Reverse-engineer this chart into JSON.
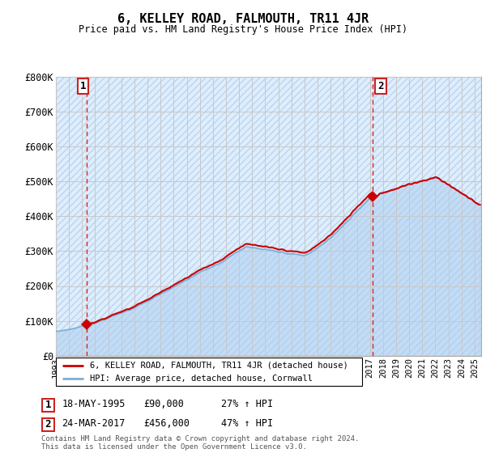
{
  "title": "6, KELLEY ROAD, FALMOUTH, TR11 4JR",
  "subtitle": "Price paid vs. HM Land Registry's House Price Index (HPI)",
  "ylim": [
    0,
    800000
  ],
  "xlim_start": 1993.0,
  "xlim_end": 2025.5,
  "hpi_color": "#7eadd4",
  "price_color": "#cc0000",
  "marker_color": "#cc0000",
  "grid_color": "#c8c8c8",
  "sale1_x": 1995.38,
  "sale1_y": 90000,
  "sale1_label": "1",
  "sale1_date": "18-MAY-1995",
  "sale1_price": "£90,000",
  "sale1_hpi": "27% ↑ HPI",
  "sale2_x": 2017.23,
  "sale2_y": 456000,
  "sale2_label": "2",
  "sale2_date": "24-MAR-2017",
  "sale2_price": "£456,000",
  "sale2_hpi": "47% ↑ HPI",
  "legend_line1": "6, KELLEY ROAD, FALMOUTH, TR11 4JR (detached house)",
  "legend_line2": "HPI: Average price, detached house, Cornwall",
  "footer": "Contains HM Land Registry data © Crown copyright and database right 2024.\nThis data is licensed under the Open Government Licence v3.0.",
  "yticks": [
    0,
    100000,
    200000,
    300000,
    400000,
    500000,
    600000,
    700000,
    800000
  ],
  "ytick_labels": [
    "£0",
    "£100K",
    "£200K",
    "£300K",
    "£400K",
    "£500K",
    "£600K",
    "£700K",
    "£800K"
  ],
  "xtick_years": [
    1993,
    1994,
    1995,
    1996,
    1997,
    1998,
    1999,
    2000,
    2001,
    2002,
    2003,
    2004,
    2005,
    2006,
    2007,
    2008,
    2009,
    2010,
    2011,
    2012,
    2013,
    2014,
    2015,
    2016,
    2017,
    2018,
    2019,
    2020,
    2021,
    2022,
    2023,
    2024,
    2025
  ],
  "hpi_fill_alpha": 0.25,
  "hpi_fill_color": "#aaccee"
}
